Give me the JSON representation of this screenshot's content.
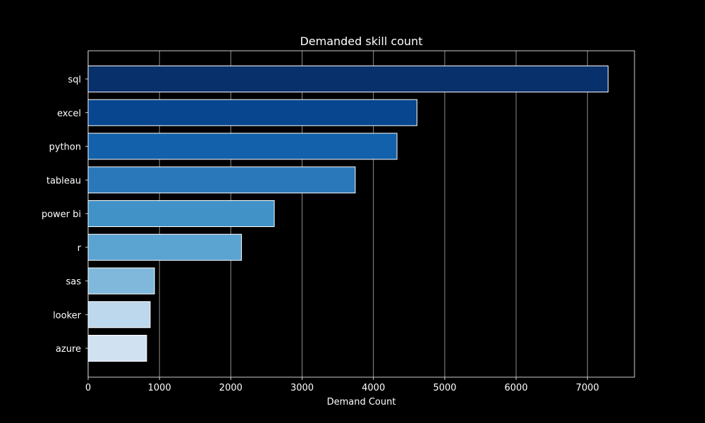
{
  "chart_data": {
    "type": "bar",
    "orientation": "horizontal",
    "title": "Demanded skill count",
    "xlabel": "Demand Count",
    "ylabel": "",
    "categories": [
      "sql",
      "excel",
      "python",
      "tableau",
      "power bi",
      "r",
      "sas",
      "looker",
      "azure"
    ],
    "values": [
      7290,
      4610,
      4330,
      3745,
      2610,
      2150,
      930,
      870,
      820
    ],
    "xlim": [
      0,
      7660
    ],
    "xticks": [
      0,
      1000,
      2000,
      3000,
      4000,
      5000,
      6000,
      7000
    ],
    "xtick_labels": [
      "0",
      "1000",
      "2000",
      "3000",
      "4000",
      "5000",
      "6000",
      "7000"
    ],
    "grid": "vertical",
    "colors": {
      "background": "#000000",
      "text": "#ffffff",
      "grid": "#b0b0b0",
      "bar_edge": "#ffffff",
      "bars": [
        "#08306b",
        "#08468f",
        "#1361ab",
        "#2a78ba",
        "#4192c6",
        "#5ba3d0",
        "#7fb8da",
        "#bdd7ec",
        "#d0e1f2"
      ]
    }
  }
}
